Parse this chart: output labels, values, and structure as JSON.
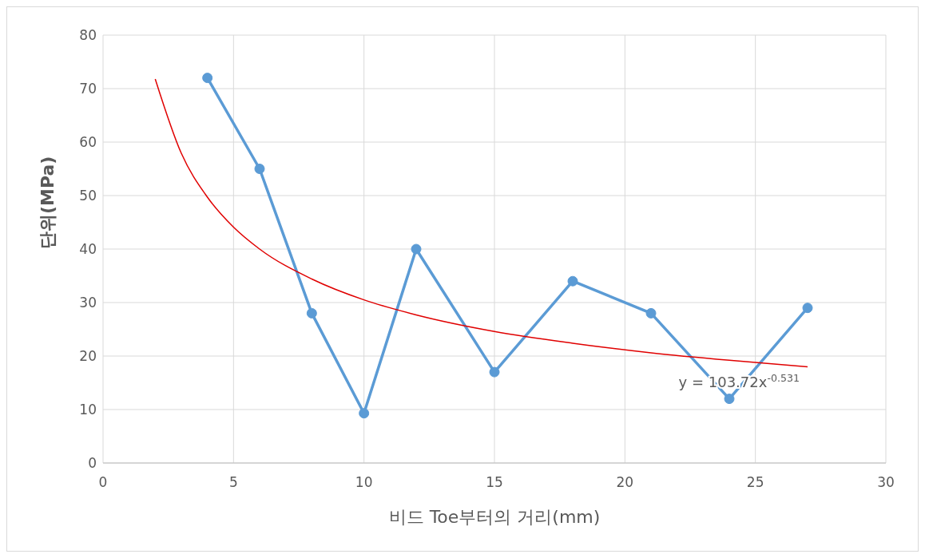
{
  "chart_data": {
    "type": "line",
    "xlabel": "비드 Toe부터의 거리(mm)",
    "ylabel": "단위(MPa)",
    "xlim": [
      0,
      30
    ],
    "xticks": [
      0,
      5,
      10,
      15,
      20,
      25,
      30
    ],
    "ylim": [
      0,
      80
    ],
    "yticks": [
      0,
      10,
      20,
      30,
      40,
      50,
      60,
      70,
      80
    ],
    "grid": true,
    "series": [
      {
        "color": "#5b9bd5",
        "marker": "circle",
        "x": [
          4,
          6,
          8,
          10,
          12,
          15,
          18,
          21,
          24,
          27
        ],
        "values": [
          72,
          55,
          28,
          9.3,
          40,
          17,
          34,
          28,
          12,
          29
        ]
      },
      {
        "type": "line",
        "color": "#e00000",
        "marker": "none",
        "x": [
          2,
          3,
          4,
          5,
          6,
          8,
          10,
          12,
          15,
          18,
          21,
          24,
          27
        ],
        "values": [
          71.8,
          57.9,
          49.7,
          44.1,
          40.0,
          34.4,
          30.5,
          27.7,
          24.6,
          22.4,
          20.6,
          19.2,
          18.0
        ]
      }
    ],
    "annotations": [
      "y = 103.72x$^{-0.531}$"
    ]
  }
}
